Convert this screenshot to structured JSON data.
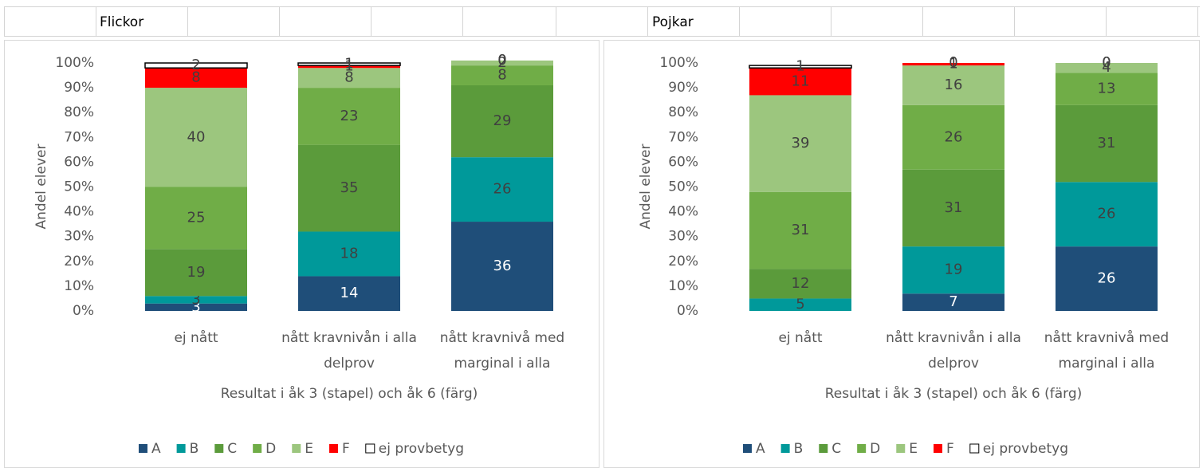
{
  "chart_data": [
    {
      "type": "bar",
      "stacked": true,
      "title": "Flickor",
      "categories": [
        "ej nått",
        "nått kravnivån i alla delprov",
        "nått kravnivå med marginal i alla"
      ],
      "ylabel": "Andel elever",
      "xlabel": "Resultat i åk 3 (stapel) och åk 6 (färg)",
      "ylim": [
        0,
        100
      ],
      "yticks": [
        {
          "value": 0,
          "label": "0%"
        },
        {
          "value": 10,
          "label": "10%"
        },
        {
          "value": 20,
          "label": "20%"
        },
        {
          "value": 30,
          "label": "30%"
        },
        {
          "value": 40,
          "label": "40%"
        },
        {
          "value": 50,
          "label": "50%"
        },
        {
          "value": 60,
          "label": "60%"
        },
        {
          "value": 70,
          "label": "70%"
        },
        {
          "value": 80,
          "label": "80%"
        },
        {
          "value": 90,
          "label": "90%"
        },
        {
          "value": 100,
          "label": "100%"
        }
      ],
      "grid": false,
      "legend": "bottom",
      "series": [
        {
          "name": "A",
          "color": "#1f4e79",
          "values": [
            3,
            14,
            36
          ]
        },
        {
          "name": "B",
          "color": "#00999a",
          "values": [
            3,
            18,
            26
          ]
        },
        {
          "name": "C",
          "color": "#5b9b3b",
          "values": [
            19,
            35,
            29
          ]
        },
        {
          "name": "D",
          "color": "#70ad47",
          "values": [
            25,
            23,
            8
          ]
        },
        {
          "name": "E",
          "color": "#9cc67e",
          "values": [
            40,
            8,
            2
          ]
        },
        {
          "name": "F",
          "color": "#ff0000",
          "values": [
            8,
            1,
            0
          ]
        },
        {
          "name": "ej provbetyg",
          "color": "#ffffff",
          "values": [
            2,
            1,
            0
          ]
        }
      ]
    },
    {
      "type": "bar",
      "stacked": true,
      "title": "Pojkar",
      "categories": [
        "ej nått",
        "nått kravnivån i alla delprov",
        "nått kravnivå med marginal i alla"
      ],
      "ylabel": "Andel elever",
      "xlabel": "Resultat i åk 3 (stapel) och åk 6 (färg)",
      "ylim": [
        0,
        100
      ],
      "yticks": [
        {
          "value": 0,
          "label": "0%"
        },
        {
          "value": 10,
          "label": "10%"
        },
        {
          "value": 20,
          "label": "20%"
        },
        {
          "value": 30,
          "label": "30%"
        },
        {
          "value": 40,
          "label": "40%"
        },
        {
          "value": 50,
          "label": "50%"
        },
        {
          "value": 60,
          "label": "60%"
        },
        {
          "value": 70,
          "label": "70%"
        },
        {
          "value": 80,
          "label": "80%"
        },
        {
          "value": 90,
          "label": "90%"
        },
        {
          "value": 100,
          "label": "100%"
        }
      ],
      "grid": false,
      "legend": "bottom",
      "series": [
        {
          "name": "A",
          "color": "#1f4e79",
          "values": [
            0,
            7,
            26
          ]
        },
        {
          "name": "B",
          "color": "#00999a",
          "values": [
            5,
            19,
            26
          ]
        },
        {
          "name": "C",
          "color": "#5b9b3b",
          "values": [
            12,
            31,
            31
          ]
        },
        {
          "name": "D",
          "color": "#70ad47",
          "values": [
            31,
            26,
            13
          ]
        },
        {
          "name": "E",
          "color": "#9cc67e",
          "values": [
            39,
            16,
            4
          ]
        },
        {
          "name": "F",
          "color": "#ff0000",
          "values": [
            11,
            1,
            0
          ]
        },
        {
          "name": "ej provbetyg",
          "color": "#ffffff",
          "values": [
            1,
            0,
            0
          ]
        }
      ]
    }
  ]
}
